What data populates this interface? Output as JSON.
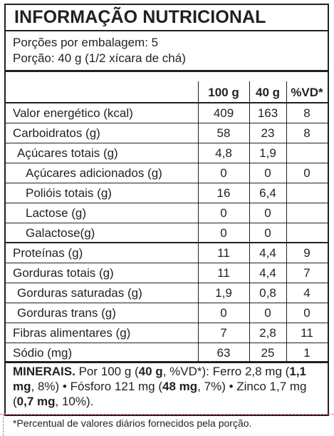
{
  "title": "INFORMAÇÃO NUTRICIONAL",
  "servings_per_package": "Porções por embalagem: 5",
  "serving_size": "Porção: 40 g (1/2 xícara de chá)",
  "table": {
    "headers": [
      "100 g",
      "40 g",
      "%VD*"
    ],
    "rows": [
      {
        "name": "Valor energético (kcal)",
        "v100": "409",
        "v40": "163",
        "vd": "8"
      },
      {
        "name": "Carboidratos (g)",
        "v100": "58",
        "v40": "23",
        "vd": "8"
      },
      {
        "name": "Açúcares totais (g)",
        "v100": "4,8",
        "v40": "1,9",
        "vd": ""
      },
      {
        "name": "Açúcares adicionados (g)",
        "v100": "0",
        "v40": "0",
        "vd": "0"
      },
      {
        "name": "Polióis totais (g)",
        "v100": "16",
        "v40": "6,4",
        "vd": ""
      },
      {
        "name": "Lactose (g)",
        "v100": "0",
        "v40": "0",
        "vd": ""
      },
      {
        "name": "Galactose(g)",
        "v100": "0",
        "v40": "0",
        "vd": ""
      },
      {
        "name": "Proteínas (g)",
        "v100": "11",
        "v40": "4,4",
        "vd": "9"
      },
      {
        "name": "Gorduras totais (g)",
        "v100": "11",
        "v40": "4,4",
        "vd": "7"
      },
      {
        "name": "Gorduras saturadas (g)",
        "v100": "1,9",
        "v40": "0,8",
        "vd": "4"
      },
      {
        "name": "Gorduras trans (g)",
        "v100": "0",
        "v40": "0",
        "vd": "0"
      },
      {
        "name": "Fibras alimentares (g)",
        "v100": "7",
        "v40": "2,8",
        "vd": "11"
      },
      {
        "name": "Sódio (mg)",
        "v100": "63",
        "v40": "25",
        "vd": "1"
      }
    ]
  },
  "minerals": {
    "heading": "MINERAIS.",
    "intro": " Por 100 g (",
    "intro_bold": "40 g",
    "intro_end": ", %VD*): Ferro 2,8 mg (",
    "iron_bold": "1,1 mg",
    "iron_end": ", 8%) • Fósforo 121 mg (",
    "phos_bold": "48 mg",
    "phos_end": ", 7%) • Zinco 1,7 mg (",
    "zinc_bold": "0,7 mg",
    "zinc_end": ", 10%)."
  },
  "footnote": "*Percentual de valores diários fornecidos pela porção."
}
